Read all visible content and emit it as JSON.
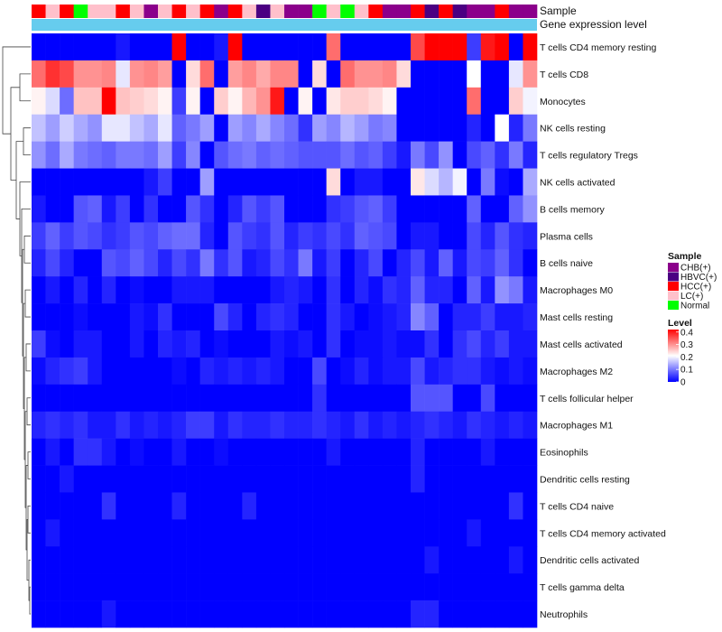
{
  "chart_data": {
    "type": "heatmap",
    "title": "",
    "annotation_labels": {
      "sample": "Sample",
      "gene_expression": "Gene expression level"
    },
    "legend_sample": {
      "title": "Sample",
      "entries": [
        {
          "label": "CHB(+)",
          "color": "#8b008b"
        },
        {
          "label": "HBVC(+)",
          "color": "#4b0082"
        },
        {
          "label": "HCC(+)",
          "color": "#ff0000"
        },
        {
          "label": "LC(+)",
          "color": "#ffc0cb"
        },
        {
          "label": "Normal",
          "color": "#00ff00"
        }
      ]
    },
    "legend_level": {
      "title": "Level",
      "ticks": [
        "0.4",
        "0.3",
        "0.2",
        "0.1",
        "0"
      ],
      "range": [
        0,
        0.42
      ],
      "colors": [
        "#0000ff",
        "#ffffff",
        "#ff0000"
      ]
    },
    "gene_expression_color": "#66ccee",
    "samples": [
      "HCC(+)",
      "LC(+)",
      "HCC(+)",
      "Normal",
      "LC(+)",
      "LC(+)",
      "HCC(+)",
      "LC(+)",
      "CHB(+)",
      "LC(+)",
      "HCC(+)",
      "LC(+)",
      "HCC(+)",
      "CHB(+)",
      "HCC(+)",
      "LC(+)",
      "HBVC(+)",
      "LC(+)",
      "CHB(+)",
      "CHB(+)",
      "Normal",
      "LC(+)",
      "Normal",
      "LC(+)",
      "HCC(+)",
      "CHB(+)",
      "CHB(+)",
      "HCC(+)",
      "HBVC(+)",
      "HCC(+)",
      "HBVC(+)",
      "CHB(+)",
      "CHB(+)",
      "HCC(+)",
      "CHB(+)",
      "CHB(+)"
    ],
    "rows": [
      {
        "name": "T cells CD4 memory resting",
        "values": [
          0,
          0,
          0,
          0,
          0,
          0,
          0.02,
          0,
          0,
          0,
          0.42,
          0,
          0,
          0.02,
          0.42,
          0,
          0,
          0,
          0,
          0,
          0,
          0.33,
          0,
          0,
          0,
          0,
          0,
          0.36,
          0.42,
          0.42,
          0.42,
          0.05,
          0.4,
          0.42,
          0,
          0.42
        ]
      },
      {
        "name": "T cells CD8",
        "values": [
          0.33,
          0.38,
          0.36,
          0.3,
          0.3,
          0.31,
          0.19,
          0.3,
          0.31,
          0.29,
          0,
          0.24,
          0.33,
          0,
          0.29,
          0.31,
          0.28,
          0.31,
          0.31,
          0,
          0.24,
          0,
          0.33,
          0.3,
          0.3,
          0.31,
          0.24,
          0,
          0,
          0,
          0,
          0.21,
          0,
          0,
          0.19,
          0.3
        ]
      },
      {
        "name": "Monocytes",
        "values": [
          0.22,
          0.18,
          0.09,
          0.26,
          0.26,
          0.42,
          0.26,
          0.25,
          0.24,
          0.22,
          0.05,
          0.22,
          0,
          0.25,
          0.22,
          0.27,
          0.3,
          0.4,
          0,
          0.22,
          0,
          0.23,
          0.25,
          0.25,
          0.24,
          0.22,
          0,
          0,
          0,
          0,
          0,
          0.33,
          0,
          0,
          0.25,
          0.2
        ]
      },
      {
        "name": "NK cells resting",
        "values": [
          0.16,
          0.13,
          0.17,
          0.14,
          0.12,
          0.19,
          0.19,
          0.16,
          0.14,
          0.19,
          0.08,
          0.1,
          0.13,
          0,
          0.13,
          0.11,
          0.14,
          0.11,
          0.09,
          0.04,
          0.13,
          0.11,
          0.15,
          0.13,
          0.1,
          0.11,
          0,
          0,
          0,
          0,
          0,
          0.03,
          0,
          0.21,
          0.03,
          0.1
        ]
      },
      {
        "name": "T cells regulatory  Tregs",
        "values": [
          0.12,
          0.09,
          0.14,
          0.1,
          0.09,
          0.08,
          0.1,
          0.1,
          0.09,
          0.13,
          0.05,
          0.11,
          0,
          0.07,
          0.09,
          0.1,
          0.08,
          0.09,
          0.08,
          0.07,
          0.07,
          0.07,
          0.09,
          0.07,
          0.08,
          0.05,
          0.02,
          0.1,
          0.06,
          0.12,
          0,
          0.06,
          0.08,
          0.04,
          0.1,
          0.03
        ]
      },
      {
        "name": "NK cells activated",
        "values": [
          0,
          0,
          0,
          0,
          0,
          0,
          0,
          0,
          0.02,
          0.05,
          0,
          0,
          0.13,
          0,
          0,
          0,
          0,
          0,
          0,
          0,
          0,
          0.24,
          0,
          0.02,
          0.02,
          0,
          0,
          0.23,
          0.18,
          0.15,
          0.2,
          0,
          0.1,
          0.01,
          0,
          0.14
        ]
      },
      {
        "name": "B cells memory",
        "values": [
          0.02,
          0,
          0,
          0.07,
          0.08,
          0.02,
          0.05,
          0,
          0.04,
          0,
          0,
          0.07,
          0.04,
          0,
          0.03,
          0.07,
          0.05,
          0.07,
          0,
          0,
          0,
          0.04,
          0.05,
          0.07,
          0.08,
          0.05,
          0,
          0,
          0,
          0,
          0,
          0.08,
          0,
          0,
          0.08,
          0.12
        ]
      },
      {
        "name": "Plasma cells",
        "values": [
          0.05,
          0.08,
          0.05,
          0.07,
          0.06,
          0.04,
          0.05,
          0.07,
          0.06,
          0.08,
          0.09,
          0.09,
          0.03,
          0,
          0.07,
          0.05,
          0.04,
          0.07,
          0.03,
          0.05,
          0.04,
          0.06,
          0.04,
          0.08,
          0.07,
          0.06,
          0,
          0.02,
          0.02,
          0,
          0,
          0.06,
          0.03,
          0.07,
          0.04,
          0.03
        ]
      },
      {
        "name": "B cells naive",
        "values": [
          0.03,
          0.06,
          0.03,
          0,
          0,
          0.07,
          0.06,
          0.08,
          0.06,
          0.03,
          0.06,
          0.04,
          0.1,
          0.04,
          0.07,
          0.02,
          0.03,
          0.06,
          0.04,
          0.1,
          0.02,
          0.05,
          0,
          0.03,
          0.06,
          0,
          0.03,
          0.06,
          0.02,
          0.08,
          0.02,
          0.06,
          0.05,
          0.08,
          0.04,
          0
        ]
      },
      {
        "name": "Macrophages M0",
        "values": [
          0,
          0.02,
          0,
          0.03,
          0,
          0.03,
          0,
          0.01,
          0,
          0,
          0.02,
          0.02,
          0.02,
          0,
          0,
          0,
          0,
          0.02,
          0.03,
          0.02,
          0,
          0.04,
          0,
          0.03,
          0.01,
          0.04,
          0.03,
          0.08,
          0.03,
          0.03,
          0,
          0.08,
          0.02,
          0.12,
          0.1,
          0.02
        ]
      },
      {
        "name": "Mast cells resting",
        "values": [
          0,
          0,
          0,
          0.01,
          0,
          0,
          0,
          0.02,
          0.01,
          0.04,
          0,
          0,
          0,
          0.06,
          0.03,
          0,
          0.03,
          0.04,
          0.03,
          0,
          0,
          0.04,
          0.02,
          0,
          0.01,
          0.02,
          0.03,
          0.11,
          0.08,
          0,
          0.03,
          0.03,
          0.05,
          0.02,
          0.02,
          0.03
        ]
      },
      {
        "name": "Mast cells activated",
        "values": [
          0.05,
          0.01,
          0,
          0.02,
          0.02,
          0,
          0,
          0.02,
          0,
          0.03,
          0.02,
          0.03,
          0,
          0.01,
          0,
          0,
          0,
          0.02,
          0.01,
          0.02,
          0,
          0.04,
          0,
          0.01,
          0.01,
          0.02,
          0.01,
          0.01,
          0.04,
          0,
          0.04,
          0.06,
          0.03,
          0.05,
          0.02,
          0.02
        ]
      },
      {
        "name": "Macrophages M2",
        "values": [
          0.01,
          0.03,
          0.04,
          0.05,
          0.02,
          0,
          0,
          0,
          0,
          0,
          0.01,
          0,
          0.03,
          0.02,
          0.03,
          0.02,
          0.03,
          0.02,
          0,
          0,
          0.06,
          0,
          0.01,
          0.03,
          0.01,
          0.02,
          0.02,
          0.06,
          0.02,
          0.03,
          0.04,
          0.04,
          0.02,
          0.01,
          0.02,
          0.01
        ]
      },
      {
        "name": "T cells follicular helper",
        "values": [
          0,
          0,
          0,
          0,
          0,
          0,
          0,
          0,
          0,
          0,
          0,
          0,
          0,
          0,
          0,
          0,
          0,
          0,
          0,
          0,
          0.04,
          0,
          0,
          0,
          0,
          0,
          0,
          0.07,
          0.07,
          0.07,
          0,
          0,
          0.06,
          0,
          0,
          0
        ]
      },
      {
        "name": "Macrophages M1",
        "values": [
          0.03,
          0.04,
          0.03,
          0.04,
          0.02,
          0.02,
          0.04,
          0.02,
          0.03,
          0.02,
          0.03,
          0.05,
          0.05,
          0.02,
          0.04,
          0.03,
          0.03,
          0.04,
          0.03,
          0.03,
          0.04,
          0.03,
          0.02,
          0.04,
          0.02,
          0.03,
          0.02,
          0.03,
          0.04,
          0.03,
          0.02,
          0.04,
          0.03,
          0.02,
          0.03,
          0.02
        ]
      },
      {
        "name": "Eosinophils",
        "values": [
          0,
          0.02,
          0,
          0.04,
          0.04,
          0.02,
          0,
          0.01,
          0,
          0,
          0.02,
          0,
          0,
          0.01,
          0,
          0,
          0,
          0,
          0,
          0,
          0,
          0.02,
          0,
          0,
          0,
          0,
          0,
          0.03,
          0,
          0,
          0,
          0,
          0.02,
          0,
          0,
          0
        ]
      },
      {
        "name": "Dendritic cells resting",
        "values": [
          0,
          0,
          0.02,
          0,
          0,
          0,
          0,
          0,
          0,
          0,
          0,
          0,
          0,
          0,
          0,
          0,
          0,
          0,
          0,
          0,
          0,
          0,
          0,
          0,
          0,
          0,
          0,
          0.03,
          0,
          0,
          0,
          0,
          0,
          0,
          0,
          0
        ]
      },
      {
        "name": "T cells CD4 naive",
        "values": [
          0,
          0,
          0,
          0,
          0,
          0.04,
          0,
          0,
          0,
          0,
          0.03,
          0,
          0,
          0,
          0,
          0.03,
          0,
          0,
          0,
          0,
          0,
          0,
          0,
          0,
          0,
          0,
          0,
          0,
          0,
          0,
          0,
          0,
          0,
          0,
          0.04,
          0
        ]
      },
      {
        "name": "T cells CD4 memory activated",
        "values": [
          0,
          0.02,
          0,
          0,
          0,
          0,
          0,
          0,
          0,
          0,
          0,
          0,
          0,
          0,
          0,
          0,
          0,
          0,
          0,
          0,
          0,
          0,
          0,
          0,
          0,
          0,
          0,
          0,
          0,
          0,
          0,
          0.02,
          0,
          0,
          0,
          0
        ]
      },
      {
        "name": "Dendritic cells activated",
        "values": [
          0,
          0,
          0,
          0,
          0,
          0,
          0,
          0,
          0,
          0,
          0,
          0,
          0,
          0,
          0,
          0,
          0,
          0,
          0,
          0,
          0,
          0,
          0,
          0,
          0,
          0,
          0,
          0,
          0.02,
          0,
          0,
          0,
          0,
          0,
          0.02,
          0
        ]
      },
      {
        "name": "T cells gamma delta",
        "values": [
          0,
          0,
          0,
          0,
          0,
          0,
          0,
          0,
          0,
          0,
          0,
          0,
          0,
          0,
          0,
          0,
          0,
          0,
          0,
          0,
          0,
          0,
          0,
          0,
          0,
          0,
          0,
          0,
          0,
          0,
          0,
          0,
          0,
          0,
          0,
          0
        ]
      },
      {
        "name": "Neutrophils",
        "values": [
          0,
          0,
          0,
          0,
          0,
          0.02,
          0,
          0,
          0,
          0,
          0,
          0,
          0,
          0,
          0,
          0,
          0,
          0,
          0,
          0,
          0,
          0,
          0,
          0,
          0,
          0,
          0,
          0.03,
          0.03,
          0,
          0,
          0,
          0,
          0,
          0,
          0
        ]
      }
    ]
  }
}
